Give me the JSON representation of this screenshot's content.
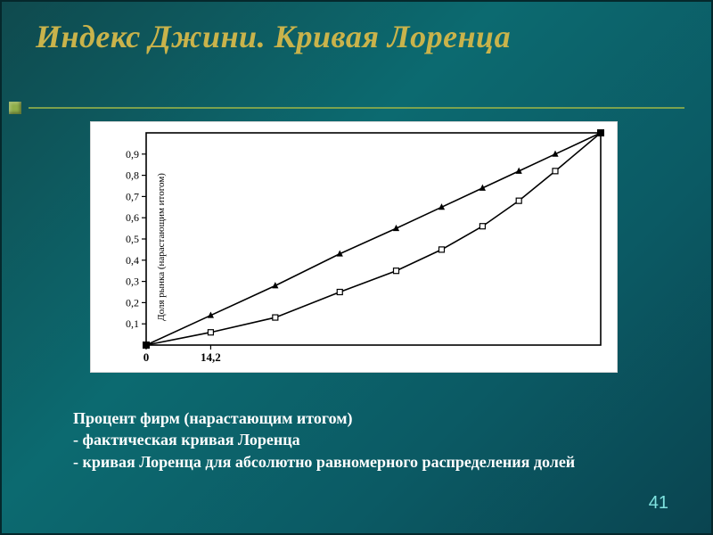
{
  "slide": {
    "title": "Индекс Джини. Кривая Лоренца",
    "page_number": "41",
    "background_gradient": [
      "#0f4a4e",
      "#0c6a70",
      "#0b5a64",
      "#0a4450"
    ],
    "title_color": "#c9b34b",
    "rule_color": "#8fae4a",
    "text_color": "#ffffff"
  },
  "chart": {
    "type": "line",
    "background_color": "#ffffff",
    "axis_color": "#000000",
    "line_width": 1.6,
    "x": {
      "min": 0,
      "max": 100,
      "ticks": [
        0,
        14.2
      ],
      "tick_labels": [
        "0",
        "14,2"
      ]
    },
    "y": {
      "min": 0,
      "max": 1.0,
      "ticks": [
        0.1,
        0.2,
        0.3,
        0.4,
        0.5,
        0.6,
        0.7,
        0.8,
        0.9
      ],
      "tick_labels": [
        "0,1",
        "0,2",
        "0,3",
        "0,4",
        "0,5",
        "0,6",
        "0,7",
        "0,8",
        "0,9"
      ],
      "label": "Доля рынка (нарастающим итогом)"
    },
    "series": [
      {
        "name": "uniform",
        "marker": "triangle",
        "marker_size": 6,
        "color": "#000000",
        "points": [
          [
            0,
            0
          ],
          [
            14.2,
            0.14
          ],
          [
            28.4,
            0.28
          ],
          [
            42.6,
            0.43
          ],
          [
            55,
            0.55
          ],
          [
            65,
            0.65
          ],
          [
            74,
            0.74
          ],
          [
            82,
            0.82
          ],
          [
            90,
            0.9
          ],
          [
            100,
            1.0
          ]
        ]
      },
      {
        "name": "actual",
        "marker": "square",
        "marker_size": 6,
        "color": "#000000",
        "points": [
          [
            0,
            0
          ],
          [
            14.2,
            0.06
          ],
          [
            28.4,
            0.13
          ],
          [
            42.6,
            0.25
          ],
          [
            55,
            0.35
          ],
          [
            65,
            0.45
          ],
          [
            74,
            0.56
          ],
          [
            82,
            0.68
          ],
          [
            90,
            0.82
          ],
          [
            100,
            1.0
          ]
        ]
      }
    ],
    "corner_markers": [
      [
        0,
        0
      ],
      [
        100,
        1.0
      ]
    ]
  },
  "legend": {
    "line1": "Процент фирм (нарастающим итогом)",
    "line2": "- фактическая кривая Лоренца",
    "line3": "- кривая Лоренца для абсолютно равномерного распределения долей"
  }
}
